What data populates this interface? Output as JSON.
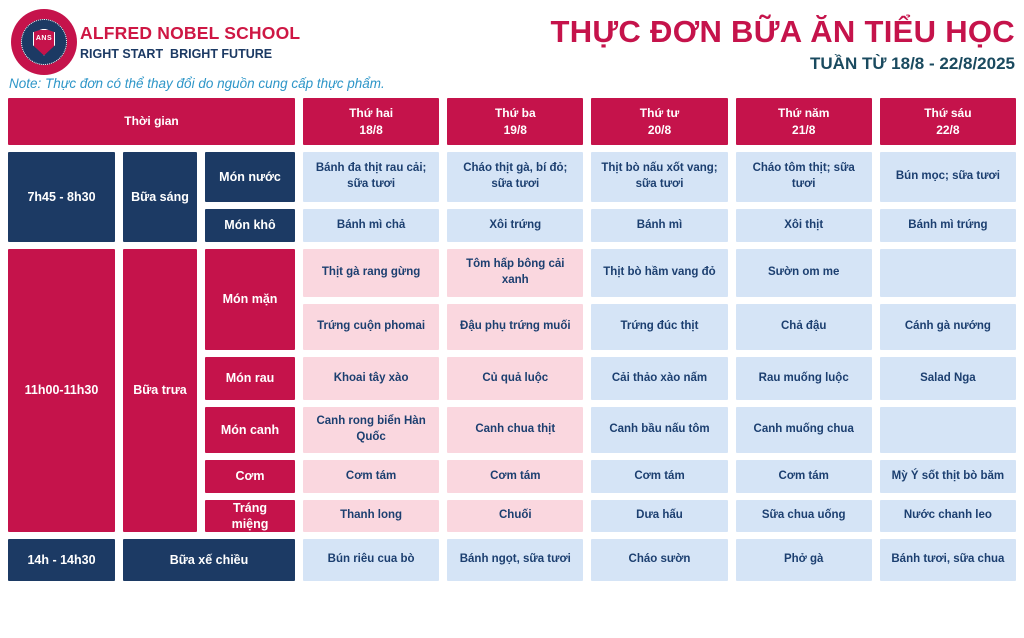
{
  "brand": {
    "logo_monogram": "ANS",
    "school_name": "ALFRED NOBEL SCHOOL",
    "tagline": "RIGHT START  BRIGHT FUTURE"
  },
  "header": {
    "title": "THỰC ĐƠN BỮA ĂN TIỂU HỌC",
    "week": "TUẦN TỪ 18/8 - 22/8/2025",
    "note": "Note: Thực đơn có thể thay đổi do nguồn cung cấp thực phẩm."
  },
  "colors": {
    "crimson": "#C5134B",
    "brand_red": "#CE1744",
    "navy": "#1C3A64",
    "light_blue": "#D5E4F6",
    "pink": "#FAD7DF",
    "note_blue": "#2E96C8",
    "week_teal": "#1A4A5F",
    "text_navy": "#1C3F70"
  },
  "table": {
    "time_header": "Thời gian",
    "days": [
      {
        "label": "Thứ hai",
        "date": "18/8"
      },
      {
        "label": "Thứ ba",
        "date": "19/8"
      },
      {
        "label": "Thứ tư",
        "date": "20/8"
      },
      {
        "label": "Thứ năm",
        "date": "21/8"
      },
      {
        "label": "Thứ sáu",
        "date": "22/8"
      }
    ],
    "breakfast": {
      "time": "7h45 - 8h30",
      "meal": "Bữa sáng",
      "rows": [
        {
          "category": "Món nước",
          "dishes": [
            "Bánh đa thịt rau cải; sữa tươi",
            "Cháo thịt gà, bí đỏ; sữa tươi",
            "Thịt bò nấu xốt vang; sữa tươi",
            "Cháo tôm thịt; sữa tươi",
            "Bún mọc; sữa tươi"
          ]
        },
        {
          "category": "Món khô",
          "dishes": [
            "Bánh mì chả",
            "Xôi trứng",
            "Bánh mì",
            "Xôi thịt",
            "Bánh mì trứng"
          ]
        }
      ]
    },
    "lunch": {
      "time": "11h00-11h30",
      "meal": "Bữa trưa",
      "rows": [
        {
          "category": "Món mặn",
          "dishes": [
            "Thịt gà rang gừng",
            "Tôm hấp bông cải xanh",
            "Thịt bò hầm vang đỏ",
            "Sườn om me",
            ""
          ]
        },
        {
          "category": "",
          "dishes": [
            "Trứng cuộn phomai",
            "Đậu phụ trứng muối",
            "Trứng đúc thịt",
            "Chả đậu",
            "Cánh gà nướng"
          ]
        },
        {
          "category": "Món rau",
          "dishes": [
            "Khoai tây xào",
            "Củ quả luộc",
            "Cải thảo xào nấm",
            "Rau muống luộc",
            "Salad Nga"
          ]
        },
        {
          "category": "Món canh",
          "dishes": [
            "Canh rong biển Hàn Quốc",
            "Canh chua thịt",
            "Canh bầu nấu tôm",
            "Canh muống chua",
            ""
          ]
        },
        {
          "category": "Cơm",
          "dishes": [
            "Cơm tám",
            "Cơm tám",
            "Cơm tám",
            "Cơm tám",
            "Mỳ Ý sốt thịt bò băm"
          ]
        },
        {
          "category": "Tráng miệng",
          "dishes": [
            "Thanh long",
            "Chuối",
            "Dưa hấu",
            "Sữa chua uống",
            "Nước chanh leo"
          ]
        }
      ]
    },
    "afternoon": {
      "time": "14h - 14h30",
      "meal": "Bữa xế chiều",
      "dishes": [
        "Bún riêu cua bò",
        "Bánh ngọt, sữa tươi",
        "Cháo sườn",
        "Phở gà",
        "Bánh tươi, sữa chua"
      ]
    }
  }
}
